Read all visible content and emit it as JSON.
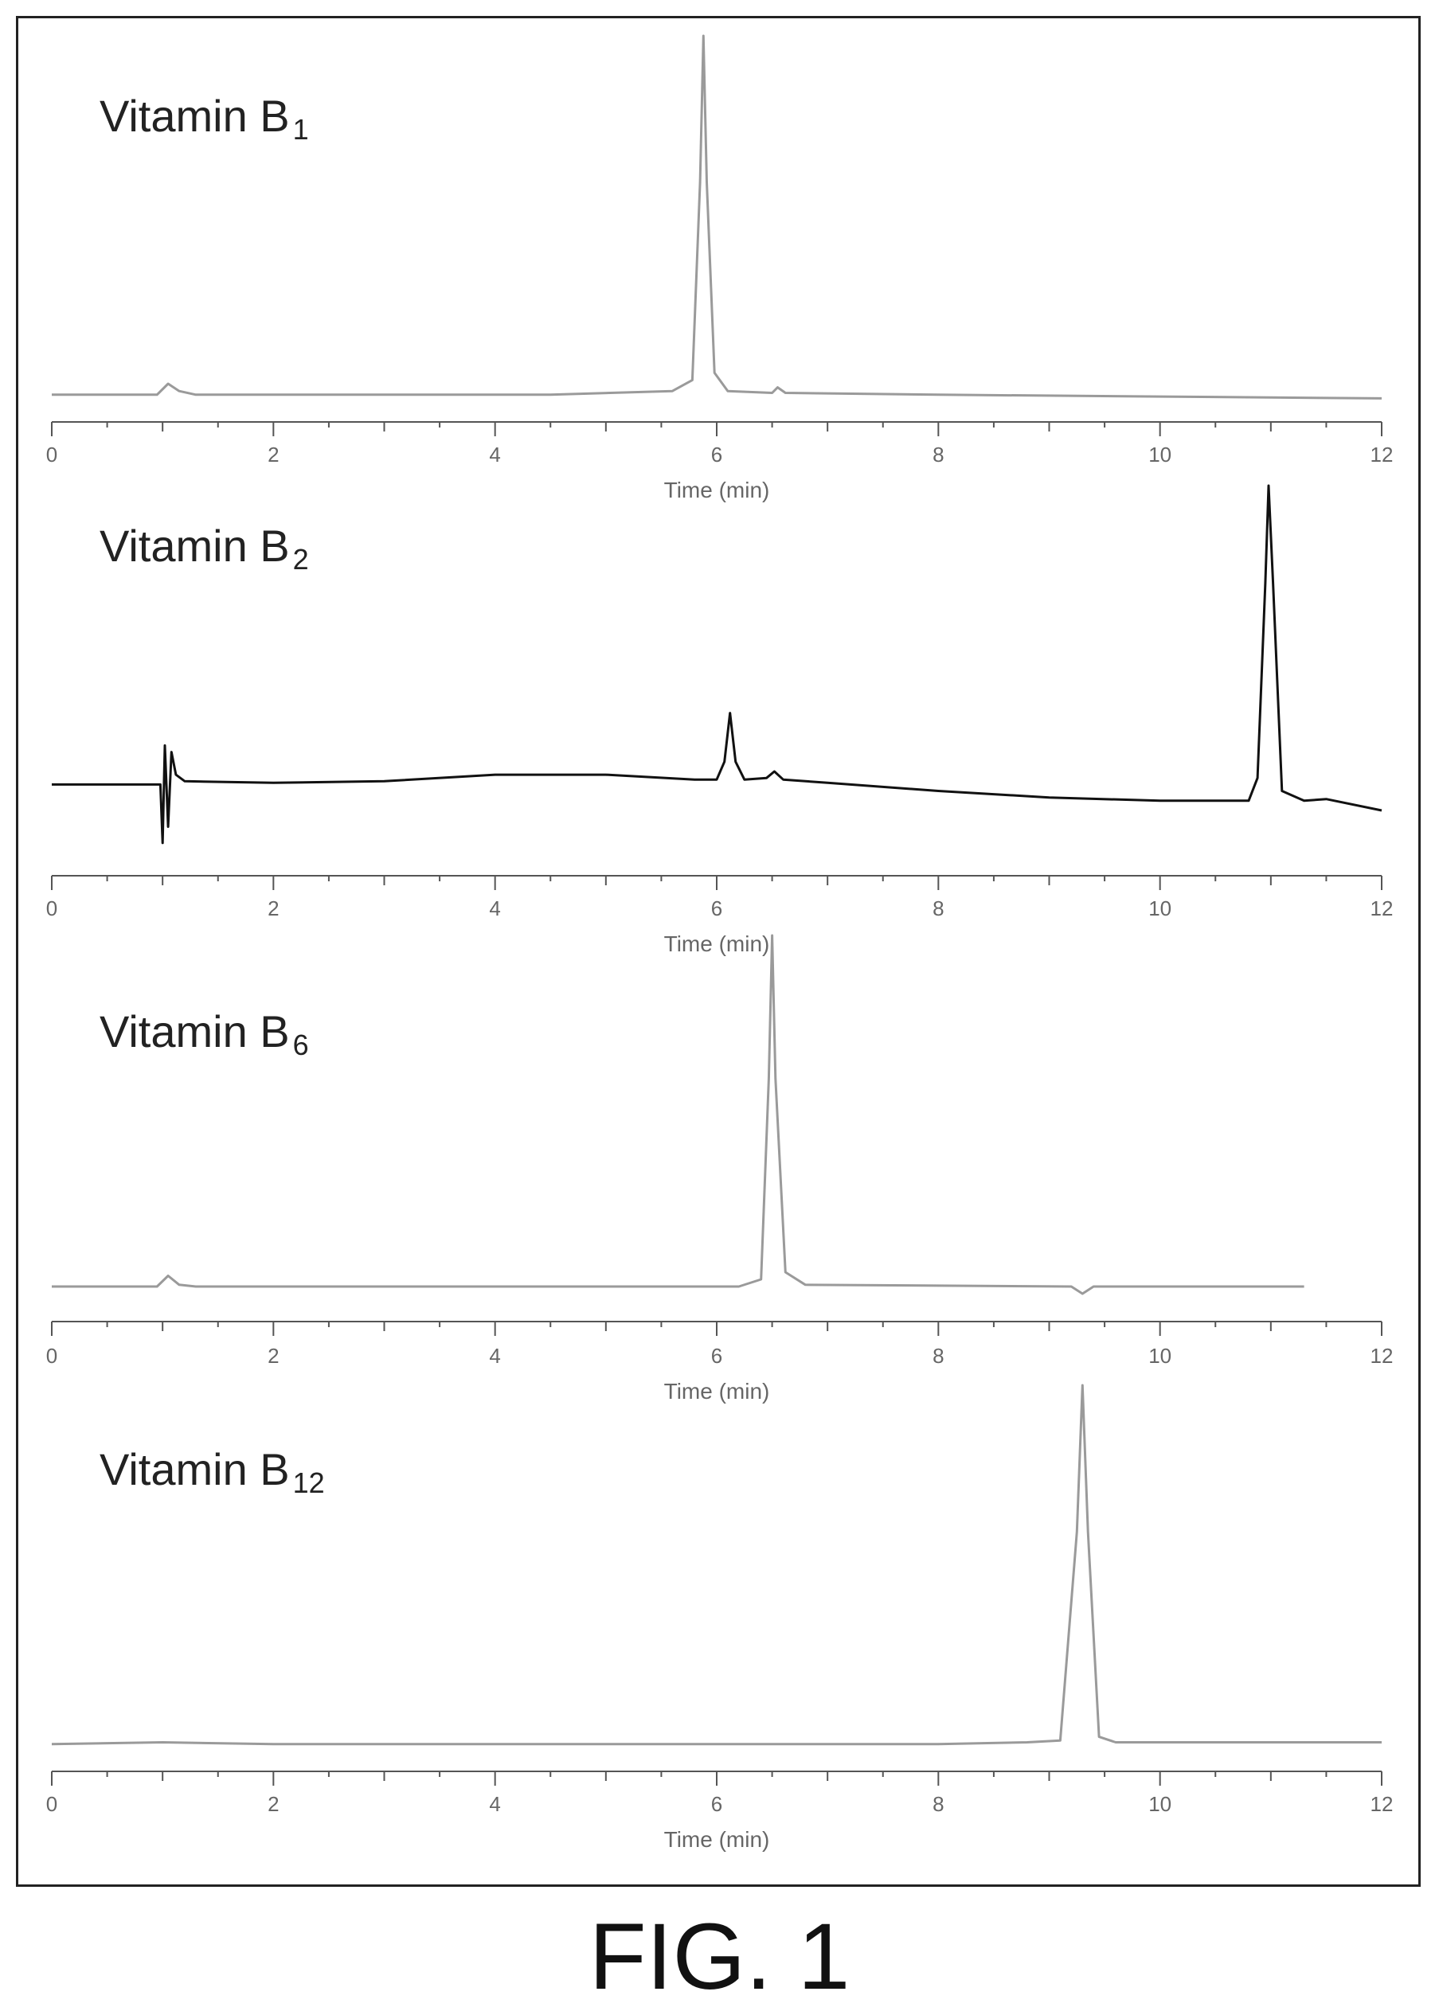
{
  "figure": {
    "caption": "FIG. 1"
  },
  "chart_data": [
    {
      "type": "line",
      "title_main": "Vitamin B",
      "title_sub": "1",
      "xlabel": "Time (min)",
      "xlim": [
        0,
        12
      ],
      "x_ticks": [
        0,
        2,
        4,
        6,
        8,
        10,
        12
      ],
      "line_color": "#9a9a9a",
      "series": [
        {
          "values": [
            [
              0,
              0.02
            ],
            [
              0.95,
              0.02
            ],
            [
              1.05,
              0.05
            ],
            [
              1.15,
              0.03
            ],
            [
              1.3,
              0.02
            ],
            [
              3,
              0.02
            ],
            [
              4.5,
              0.02
            ],
            [
              5.6,
              0.03
            ],
            [
              5.78,
              0.06
            ],
            [
              5.85,
              0.6
            ],
            [
              5.88,
              1.0
            ],
            [
              5.91,
              0.6
            ],
            [
              5.98,
              0.08
            ],
            [
              6.1,
              0.03
            ],
            [
              6.5,
              0.025
            ],
            [
              6.55,
              0.04
            ],
            [
              6.62,
              0.025
            ],
            [
              8,
              0.02
            ],
            [
              10,
              0.015
            ],
            [
              12,
              0.01
            ]
          ]
        }
      ]
    },
    {
      "type": "line",
      "title_main": "Vitamin B",
      "title_sub": "2",
      "xlabel": "Time (min)",
      "xlim": [
        0,
        12
      ],
      "x_ticks": [
        0,
        2,
        4,
        6,
        8,
        10,
        12
      ],
      "line_color": "#111111",
      "series": [
        {
          "values": [
            [
              0,
              0.08
            ],
            [
              0.98,
              0.08
            ],
            [
              1.0,
              -0.1
            ],
            [
              1.02,
              0.2
            ],
            [
              1.05,
              -0.05
            ],
            [
              1.08,
              0.18
            ],
            [
              1.12,
              0.11
            ],
            [
              1.2,
              0.09
            ],
            [
              2,
              0.085
            ],
            [
              3,
              0.09
            ],
            [
              4,
              0.11
            ],
            [
              5,
              0.11
            ],
            [
              5.8,
              0.095
            ],
            [
              6.0,
              0.095
            ],
            [
              6.07,
              0.15
            ],
            [
              6.12,
              0.3
            ],
            [
              6.17,
              0.15
            ],
            [
              6.25,
              0.095
            ],
            [
              6.45,
              0.1
            ],
            [
              6.52,
              0.12
            ],
            [
              6.6,
              0.095
            ],
            [
              7,
              0.085
            ],
            [
              8,
              0.06
            ],
            [
              9,
              0.04
            ],
            [
              10,
              0.03
            ],
            [
              10.8,
              0.03
            ],
            [
              10.88,
              0.1
            ],
            [
              10.95,
              0.7
            ],
            [
              10.98,
              1.0
            ],
            [
              11.02,
              0.7
            ],
            [
              11.1,
              0.06
            ],
            [
              11.3,
              0.03
            ],
            [
              11.5,
              0.035
            ],
            [
              12,
              0.0
            ]
          ]
        }
      ]
    },
    {
      "type": "line",
      "title_main": "Vitamin B",
      "title_sub": "6",
      "xlabel": "Time (min)",
      "xlim": [
        0,
        12
      ],
      "x_ticks": [
        0,
        2,
        4,
        6,
        8,
        10,
        12
      ],
      "line_color": "#9a9a9a",
      "series": [
        {
          "values": [
            [
              0,
              0.02
            ],
            [
              0.95,
              0.02
            ],
            [
              1.05,
              0.05
            ],
            [
              1.15,
              0.025
            ],
            [
              1.3,
              0.02
            ],
            [
              4,
              0.02
            ],
            [
              6.2,
              0.02
            ],
            [
              6.4,
              0.04
            ],
            [
              6.47,
              0.6
            ],
            [
              6.5,
              1.0
            ],
            [
              6.53,
              0.6
            ],
            [
              6.62,
              0.06
            ],
            [
              6.8,
              0.025
            ],
            [
              9.2,
              0.02
            ],
            [
              9.3,
              0.0
            ],
            [
              9.4,
              0.02
            ],
            [
              11.3,
              0.02
            ]
          ]
        }
      ]
    },
    {
      "type": "line",
      "title_main": "Vitamin B",
      "title_sub": "12",
      "xlabel": "Time (min)",
      "xlim": [
        0,
        12
      ],
      "x_ticks": [
        0,
        2,
        4,
        6,
        8,
        10,
        12
      ],
      "line_color": "#9a9a9a",
      "series": [
        {
          "values": [
            [
              0,
              0.02
            ],
            [
              1,
              0.025
            ],
            [
              2,
              0.02
            ],
            [
              4,
              0.02
            ],
            [
              6,
              0.02
            ],
            [
              8,
              0.02
            ],
            [
              8.8,
              0.025
            ],
            [
              9.1,
              0.03
            ],
            [
              9.25,
              0.6
            ],
            [
              9.3,
              1.0
            ],
            [
              9.35,
              0.6
            ],
            [
              9.45,
              0.04
            ],
            [
              9.6,
              0.025
            ],
            [
              10.5,
              0.025
            ],
            [
              12,
              0.025
            ]
          ]
        }
      ]
    }
  ]
}
